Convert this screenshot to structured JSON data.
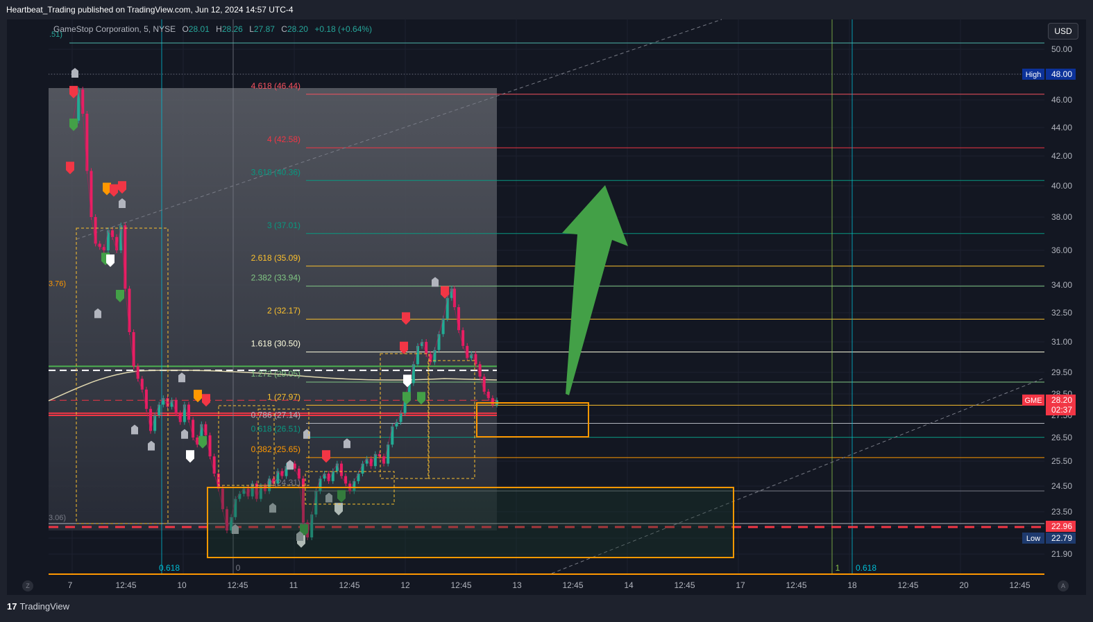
{
  "header": {
    "published_by": "Heartbeat_Trading published on TradingView.com, Jun 12, 2024 14:57 UTC-4",
    "currency_button": "USD"
  },
  "legend": {
    "symbol": "GameStop Corporation, 5, NYSE",
    "o_label": "O",
    "o_value": "28.01",
    "h_label": "H",
    "h_value": "28.26",
    "l_label": "L",
    "l_value": "27.87",
    "c_label": "C",
    "c_value": "28.20",
    "change": "+0.18 (+0.64%)",
    "edge_label": ".51)"
  },
  "footer": {
    "brand": "TradingView",
    "brand_mark": "17",
    "left_button": "Z",
    "right_button": "A"
  },
  "chart_data": {
    "type": "candlestick",
    "symbol": "GME",
    "interval": "5",
    "y_ticks": [
      50.0,
      48.0,
      46.0,
      44.0,
      42.0,
      40.0,
      38.0,
      36.0,
      34.0,
      32.5,
      31.0,
      29.5,
      28.5,
      27.5,
      26.5,
      25.5,
      24.5,
      23.5,
      22.96,
      22.79,
      21.9
    ],
    "y_tick_labels": [
      "50.00",
      "46.00",
      "44.00",
      "42.00",
      "40.00",
      "38.00",
      "36.00",
      "34.00",
      "32.50",
      "31.00",
      "29.50",
      "28.50",
      "27.50",
      "26.50",
      "25.50",
      "24.50",
      "23.50",
      "21.90"
    ],
    "x_tick_labels": [
      "7",
      "12:45",
      "10",
      "12:45",
      "11",
      "12:45",
      "12",
      "12:45",
      "13",
      "12:45",
      "14",
      "12:45",
      "17",
      "12:45",
      "18",
      "12:45",
      "20",
      "12:45"
    ],
    "price_tags": [
      {
        "label": "High",
        "value": "48.00",
        "color": "#0c3299"
      },
      {
        "label": "GME",
        "value": "28.20",
        "color": "#f23645"
      },
      {
        "label": "",
        "value": "02:37",
        "color": "#f23645"
      },
      {
        "label": "",
        "value": "22.96",
        "color": "#f23645"
      },
      {
        "label": "Low",
        "value": "22.79",
        "color": "#1e3a6e"
      }
    ],
    "fib_levels": [
      {
        "ratio": "4.618",
        "price": 46.44,
        "label": "4.618 (46.44)",
        "color": "#f7525f"
      },
      {
        "ratio": "4",
        "price": 42.58,
        "label": "4 (42.58)",
        "color": "#f23645"
      },
      {
        "ratio": "3.618",
        "price": 40.36,
        "label": "3.618 (40.36)",
        "color": "#089981"
      },
      {
        "ratio": "3",
        "price": 37.01,
        "label": "3 (37.01)",
        "color": "#089981"
      },
      {
        "ratio": "2.618",
        "price": 35.09,
        "label": "2.618 (35.09)",
        "color": "#fbc02d"
      },
      {
        "ratio": "2.382",
        "price": 33.94,
        "label": "2.382 (33.94)",
        "color": "#81c784"
      },
      {
        "ratio": "2",
        "price": 32.17,
        "label": "2 (32.17)",
        "color": "#fbc02d"
      },
      {
        "ratio": "1.618",
        "price": 30.5,
        "label": "1.618 (30.50)",
        "color": "#ffffe0"
      },
      {
        "ratio": "1.272",
        "price": 29.05,
        "label": "1.272 (29.05)",
        "color": "#81c784"
      },
      {
        "ratio": "1",
        "price": 27.97,
        "label": "1 (27.97)",
        "color": "#fbc02d"
      },
      {
        "ratio": "0.786",
        "price": 27.14,
        "label": "0.786 (27.14)",
        "color": "#b2b5be"
      },
      {
        "ratio": "0.618",
        "price": 26.51,
        "label": "0.618 (26.51)",
        "color": "#089981"
      },
      {
        "ratio": "0.382",
        "price": 25.65,
        "label": "0.382 (25.65)",
        "color": "#ff9800"
      },
      {
        "ratio": "0",
        "price": 24.31,
        "label": "0 (24.31)",
        "color": "#787b86"
      }
    ],
    "side_labels": [
      {
        "text": "3.76)",
        "price": 34.1,
        "color": "#ff9800"
      },
      {
        "text": "3.06)",
        "price": 23.3,
        "color": "#787b86"
      }
    ],
    "bottom_fib_labels": [
      {
        "text": "0.618",
        "color": "#00bcd4"
      },
      {
        "text": "0",
        "color": "#787b86"
      },
      {
        "text": "1",
        "color": "#8bc34a"
      },
      {
        "text": "0.618",
        "color": "#00bcd4"
      }
    ],
    "annotations": [
      {
        "type": "arrow",
        "direction": "up",
        "color": "#4caf50"
      },
      {
        "type": "box",
        "name": "support-zone",
        "color": "#ff9800"
      },
      {
        "type": "box",
        "name": "entry-zone",
        "color": "#ff9800"
      }
    ],
    "price_path": [
      [
        0,
        44.5
      ],
      [
        8,
        46.8
      ],
      [
        14,
        45.0
      ],
      [
        20,
        41.0
      ],
      [
        26,
        38.0
      ],
      [
        32,
        36.4
      ],
      [
        38,
        36.2
      ],
      [
        44,
        36.0
      ],
      [
        50,
        37.2
      ],
      [
        56,
        36.8
      ],
      [
        62,
        36.0
      ],
      [
        68,
        37.5
      ],
      [
        74,
        33.8
      ],
      [
        80,
        31.5
      ],
      [
        86,
        29.8
      ],
      [
        92,
        29.2
      ],
      [
        98,
        28.7
      ],
      [
        104,
        27.8
      ],
      [
        110,
        26.8
      ],
      [
        116,
        27.5
      ],
      [
        122,
        28.0
      ],
      [
        128,
        28.3
      ],
      [
        134,
        27.9
      ],
      [
        140,
        28.2
      ],
      [
        146,
        27.6
      ],
      [
        152,
        27.2
      ],
      [
        158,
        28.0
      ],
      [
        164,
        27.3
      ],
      [
        170,
        26.5
      ],
      [
        176,
        26.2
      ],
      [
        182,
        27.1
      ],
      [
        188,
        26.6
      ],
      [
        194,
        25.7
      ],
      [
        200,
        25.0
      ],
      [
        206,
        24.4
      ],
      [
        212,
        23.6
      ],
      [
        218,
        22.9
      ],
      [
        224,
        23.3
      ],
      [
        230,
        24.0
      ],
      [
        236,
        24.2
      ],
      [
        242,
        24.4
      ],
      [
        248,
        24.1
      ],
      [
        254,
        24.6
      ],
      [
        260,
        24.0
      ],
      [
        266,
        24.5
      ],
      [
        272,
        24.3
      ],
      [
        278,
        24.8
      ],
      [
        284,
        24.6
      ],
      [
        290,
        25.1
      ],
      [
        296,
        24.9
      ],
      [
        302,
        25.3
      ],
      [
        308,
        25.4
      ],
      [
        314,
        25.2
      ],
      [
        320,
        24.8
      ],
      [
        326,
        23.1
      ],
      [
        332,
        22.8
      ],
      [
        338,
        23.4
      ],
      [
        344,
        24.3
      ],
      [
        350,
        24.8
      ],
      [
        356,
        25.0
      ],
      [
        362,
        24.7
      ],
      [
        368,
        25.1
      ],
      [
        374,
        25.4
      ],
      [
        380,
        24.9
      ],
      [
        386,
        24.6
      ],
      [
        392,
        24.3
      ],
      [
        398,
        24.7
      ],
      [
        404,
        25.0
      ],
      [
        410,
        25.4
      ],
      [
        416,
        25.6
      ],
      [
        422,
        25.3
      ],
      [
        428,
        25.8
      ],
      [
        434,
        25.7
      ],
      [
        440,
        25.4
      ],
      [
        446,
        26.2
      ],
      [
        452,
        27.0
      ],
      [
        458,
        27.2
      ],
      [
        464,
        27.6
      ],
      [
        470,
        28.4
      ],
      [
        476,
        29.0
      ],
      [
        482,
        29.9
      ],
      [
        488,
        30.8
      ],
      [
        494,
        31.0
      ],
      [
        500,
        30.4
      ],
      [
        506,
        30.0
      ],
      [
        512,
        30.6
      ],
      [
        518,
        31.4
      ],
      [
        524,
        32.2
      ],
      [
        530,
        33.3
      ],
      [
        536,
        33.8
      ],
      [
        540,
        32.8
      ],
      [
        546,
        31.6
      ],
      [
        552,
        30.8
      ],
      [
        558,
        30.2
      ],
      [
        564,
        30.4
      ],
      [
        570,
        29.9
      ],
      [
        576,
        29.3
      ],
      [
        582,
        28.6
      ],
      [
        588,
        28.3
      ],
      [
        594,
        28.0
      ],
      [
        600,
        28.2
      ]
    ]
  }
}
